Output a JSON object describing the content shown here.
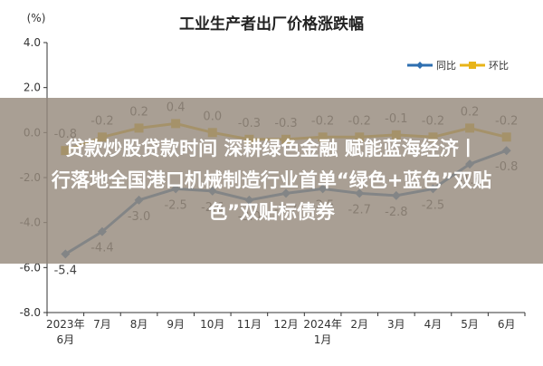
{
  "chart_data": {
    "type": "line",
    "title": "工业生产者出厂价格涨跌幅",
    "ylabel": "(%)",
    "ylim": [
      -8.0,
      4.0
    ],
    "yticks": [
      "4.0",
      "2.0",
      "0.0",
      "-2.0",
      "-4.0",
      "-6.0",
      "-8.0"
    ],
    "ytick_values": [
      4,
      2,
      0,
      -2,
      -4,
      -6,
      -8
    ],
    "categories": [
      "2023年6月",
      "7月",
      "8月",
      "9月",
      "10月",
      "11月",
      "12月",
      "2024年1月",
      "2月",
      "3月",
      "4月",
      "5月",
      "6月"
    ],
    "category_lines": [
      [
        "2023年",
        "6月"
      ],
      [
        "7月"
      ],
      [
        "8月"
      ],
      [
        "9月"
      ],
      [
        "10月"
      ],
      [
        "11月"
      ],
      [
        "12月"
      ],
      [
        "2024年",
        "1月"
      ],
      [
        "2月"
      ],
      [
        "3月"
      ],
      [
        "4月"
      ],
      [
        "5月"
      ],
      [
        "6月"
      ]
    ],
    "legend_position": "top-right",
    "grid": false,
    "series": [
      {
        "name": "同比",
        "color": "#2e6fb0",
        "values": [
          -5.4,
          -4.4,
          -3.0,
          -2.5,
          -2.6,
          -3.0,
          -2.7,
          -2.5,
          -2.7,
          -2.8,
          -2.5,
          -1.4,
          -0.8
        ],
        "labels": [
          "-5.4",
          "-4.4",
          "-3.0",
          "-2.5",
          "-2.6",
          "-3.0",
          "-2.7",
          "-2.5",
          "-2.7",
          "-2.8",
          "-2.5",
          "-1.4",
          "-0.8"
        ]
      },
      {
        "name": "环比",
        "color": "#e8b418",
        "values": [
          -0.8,
          -0.2,
          0.2,
          0.4,
          0.0,
          -0.3,
          -0.3,
          -0.2,
          -0.2,
          -0.1,
          -0.2,
          0.2,
          -0.2
        ],
        "labels": [
          "-0.8",
          "-0.2",
          "0.2",
          "0.4",
          "0.0",
          "-0.3",
          "-0.3",
          "-0.2",
          "-0.2",
          "-0.1",
          "-0.2",
          "0.2",
          "-0.2"
        ]
      }
    ]
  },
  "overlay": {
    "line1": "贷款炒股贷款时间 深耕绿色金融 赋能蓝海经济丨",
    "line2": "行落地全国港口机械制造行业首单“绿色+蓝色”双贴",
    "line3": "色”双贴标债券"
  }
}
